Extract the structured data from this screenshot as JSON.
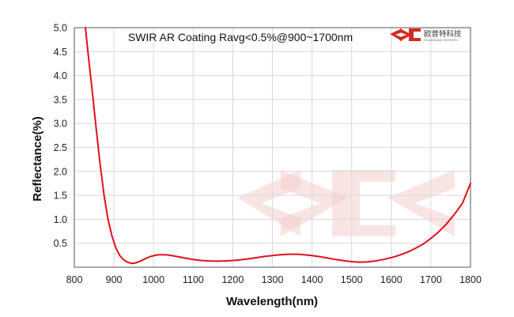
{
  "chart_data": {
    "type": "line",
    "title": "SWIR AR Coating Ravg<0.5%@900~1700nm",
    "xlabel": "Wavelength(nm)",
    "ylabel": "Reflectance(%)",
    "xlim": [
      800,
      1800
    ],
    "ylim": [
      0,
      5.0
    ],
    "x_ticks": [
      "800",
      "900",
      "1000",
      "1100",
      "1200",
      "1300",
      "1400",
      "1500",
      "1600",
      "1700",
      "1800"
    ],
    "y_ticks": [
      "0.5",
      "1.0",
      "1.5",
      "2.0",
      "2.5",
      "3.0",
      "3.5",
      "4.0",
      "4.5",
      "5.0"
    ],
    "grid": true,
    "series_color": "#e0101a",
    "series": [
      {
        "x": [
          828,
          835,
          845,
          855,
          865,
          875,
          885,
          895,
          905,
          915,
          925,
          935,
          945,
          955,
          965,
          975,
          985,
          995,
          1005,
          1015,
          1025,
          1035,
          1045,
          1055,
          1065,
          1080,
          1100,
          1120,
          1140,
          1160,
          1180,
          1200,
          1220,
          1240,
          1260,
          1280,
          1300,
          1320,
          1340,
          1360,
          1380,
          1400,
          1420,
          1440,
          1460,
          1480,
          1500,
          1520,
          1540,
          1560,
          1580,
          1600,
          1620,
          1640,
          1660,
          1680,
          1700,
          1720,
          1740,
          1760,
          1780,
          1800
        ],
        "y": [
          5.0,
          4.45,
          3.7,
          2.9,
          2.15,
          1.5,
          1.0,
          0.65,
          0.4,
          0.24,
          0.15,
          0.1,
          0.08,
          0.09,
          0.12,
          0.16,
          0.2,
          0.23,
          0.25,
          0.26,
          0.26,
          0.255,
          0.245,
          0.23,
          0.215,
          0.19,
          0.16,
          0.14,
          0.13,
          0.125,
          0.13,
          0.14,
          0.155,
          0.175,
          0.2,
          0.225,
          0.245,
          0.26,
          0.27,
          0.27,
          0.26,
          0.245,
          0.22,
          0.19,
          0.16,
          0.135,
          0.115,
          0.105,
          0.11,
          0.13,
          0.16,
          0.2,
          0.25,
          0.31,
          0.39,
          0.48,
          0.6,
          0.74,
          0.91,
          1.11,
          1.34,
          1.75
        ]
      }
    ]
  },
  "watermark": {
    "color": "#f2d0cc"
  },
  "logo": {
    "name": "欧普特科技",
    "tagline": "GOLDEN WAY SCIENTIFIC",
    "color": "#d42a24"
  }
}
